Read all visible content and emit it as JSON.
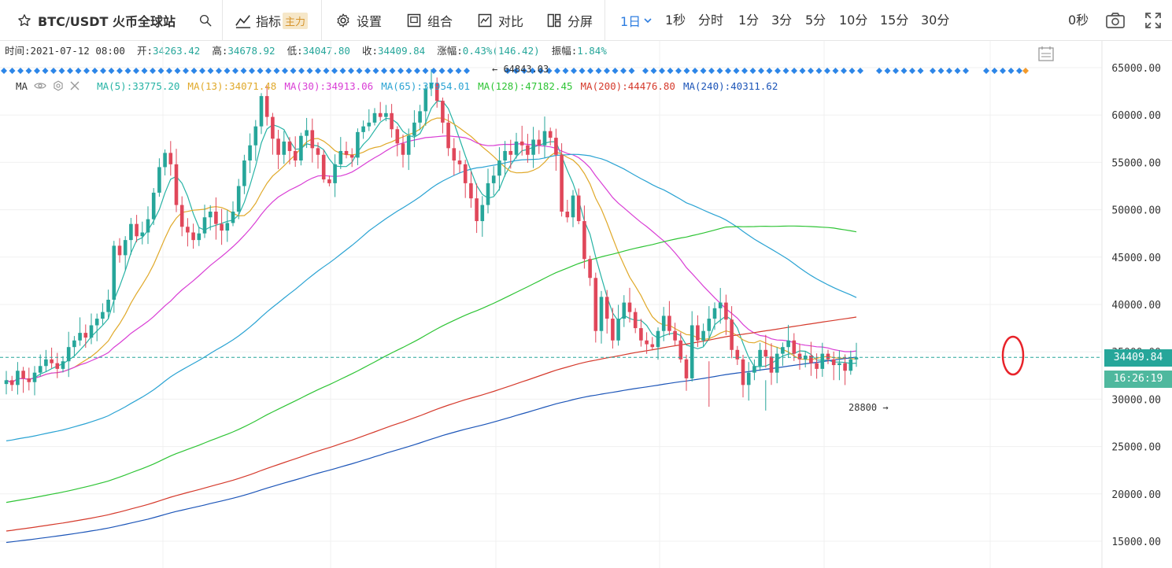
{
  "toolbar": {
    "symbol": "BTC/USDT 火币全球站",
    "indicators_label": "指标",
    "main_badge": "主力",
    "settings_label": "设置",
    "combine_label": "组合",
    "compare_label": "对比",
    "split_label": "分屏",
    "interval_selected": "1日",
    "periods": [
      "1秒",
      "分时",
      "1分",
      "3分",
      "5分",
      "10分",
      "15分",
      "30分"
    ],
    "seconds_counter": "0秒"
  },
  "ohlc": {
    "time_label": "时间:",
    "time": "2021-07-12 08:00",
    "open_label": "开:",
    "open": "34263.42",
    "high_label": "高:",
    "high": "34678.92",
    "low_label": "低:",
    "low": "34047.80",
    "close_label": "收:",
    "close": "34409.84",
    "change_label": "涨幅:",
    "change": "0.43%(146.42)",
    "amplitude_label": "振幅:",
    "amplitude": "1.84%"
  },
  "ma_legend": {
    "title": "MA",
    "items": [
      {
        "text": "MA(5):33775.20",
        "color": "#26b3a5"
      },
      {
        "text": "MA(13):34071.48",
        "color": "#e0a92a"
      },
      {
        "text": "MA(30):34913.06",
        "color": "#d93ed5"
      },
      {
        "text": "MA(65):37954.01",
        "color": "#2aa3d3"
      },
      {
        "text": "MA(128):47182.45",
        "color": "#2ec435"
      },
      {
        "text": "MA(200):44476.80",
        "color": "#d53a2c"
      },
      {
        "text": "MA(240):40311.62",
        "color": "#1c55b8"
      }
    ]
  },
  "chart_data": {
    "type": "candlestick",
    "symbol": "BTC/USDT",
    "interval": "1日",
    "ylim": [
      14000,
      67000
    ],
    "y_ticks": [
      15000,
      20000,
      25000,
      30000,
      35000,
      40000,
      45000,
      50000,
      55000,
      60000,
      65000
    ],
    "y_tick_labels": [
      "15000.00",
      "20000.00",
      "25000.00",
      "30000.00",
      "35000.00",
      "40000.00",
      "45000.00",
      "50000.00",
      "55000.00",
      "60000.00",
      "65000.00"
    ],
    "last_price": 34409.84,
    "last_price_label": "34409.84",
    "countdown": "16:26:19",
    "high_marker": {
      "value": 64843.03,
      "label": "← 64843.03"
    },
    "low_marker": {
      "value": 28800,
      "label": "28800 →"
    },
    "up_color": "#26a69a",
    "down_color": "#e0475a",
    "closes": [
      32000,
      31500,
      33000,
      32200,
      31800,
      32800,
      33500,
      34200,
      33800,
      33200,
      34000,
      35500,
      36200,
      37000,
      36500,
      37800,
      38500,
      39200,
      40500,
      46200,
      45200,
      46800,
      48500,
      47200,
      47600,
      49000,
      51800,
      54500,
      56000,
      54800,
      50500,
      48200,
      47600,
      46800,
      47500,
      49200,
      49800,
      48500,
      47800,
      48600,
      49800,
      52500,
      55200,
      56800,
      58800,
      62000,
      59800,
      57500,
      55800,
      57200,
      56200,
      55200,
      57800,
      58400,
      56500,
      55800,
      53200,
      52800,
      54800,
      56200,
      55800,
      55500,
      58200,
      58800,
      59200,
      60200,
      59800,
      60200,
      58500,
      57000,
      55800,
      57800,
      59200,
      60400,
      62800,
      63400,
      61500,
      59200,
      56500,
      55200,
      54800,
      52800,
      51200,
      48800,
      50500,
      52800,
      53600,
      55200,
      56200,
      55800,
      57200,
      56800,
      55800,
      57400,
      56800,
      58300,
      57600,
      55800,
      49800,
      49200,
      51500,
      48800,
      44800,
      42800,
      37200,
      40800,
      38500,
      36200,
      38500,
      40200,
      39200,
      37500,
      36200,
      35800,
      35500,
      37200,
      38800,
      37200,
      36200,
      34200,
      32200,
      37800,
      36200,
      37200,
      38500,
      39600,
      40200,
      38400,
      35200,
      34200,
      31500,
      32800,
      33500,
      35200,
      34500,
      32800,
      34800,
      35500,
      36200,
      34800,
      34200,
      34600,
      33800,
      33200,
      34800,
      34200,
      33600,
      33800,
      33000,
      34200,
      34409.84
    ]
  }
}
